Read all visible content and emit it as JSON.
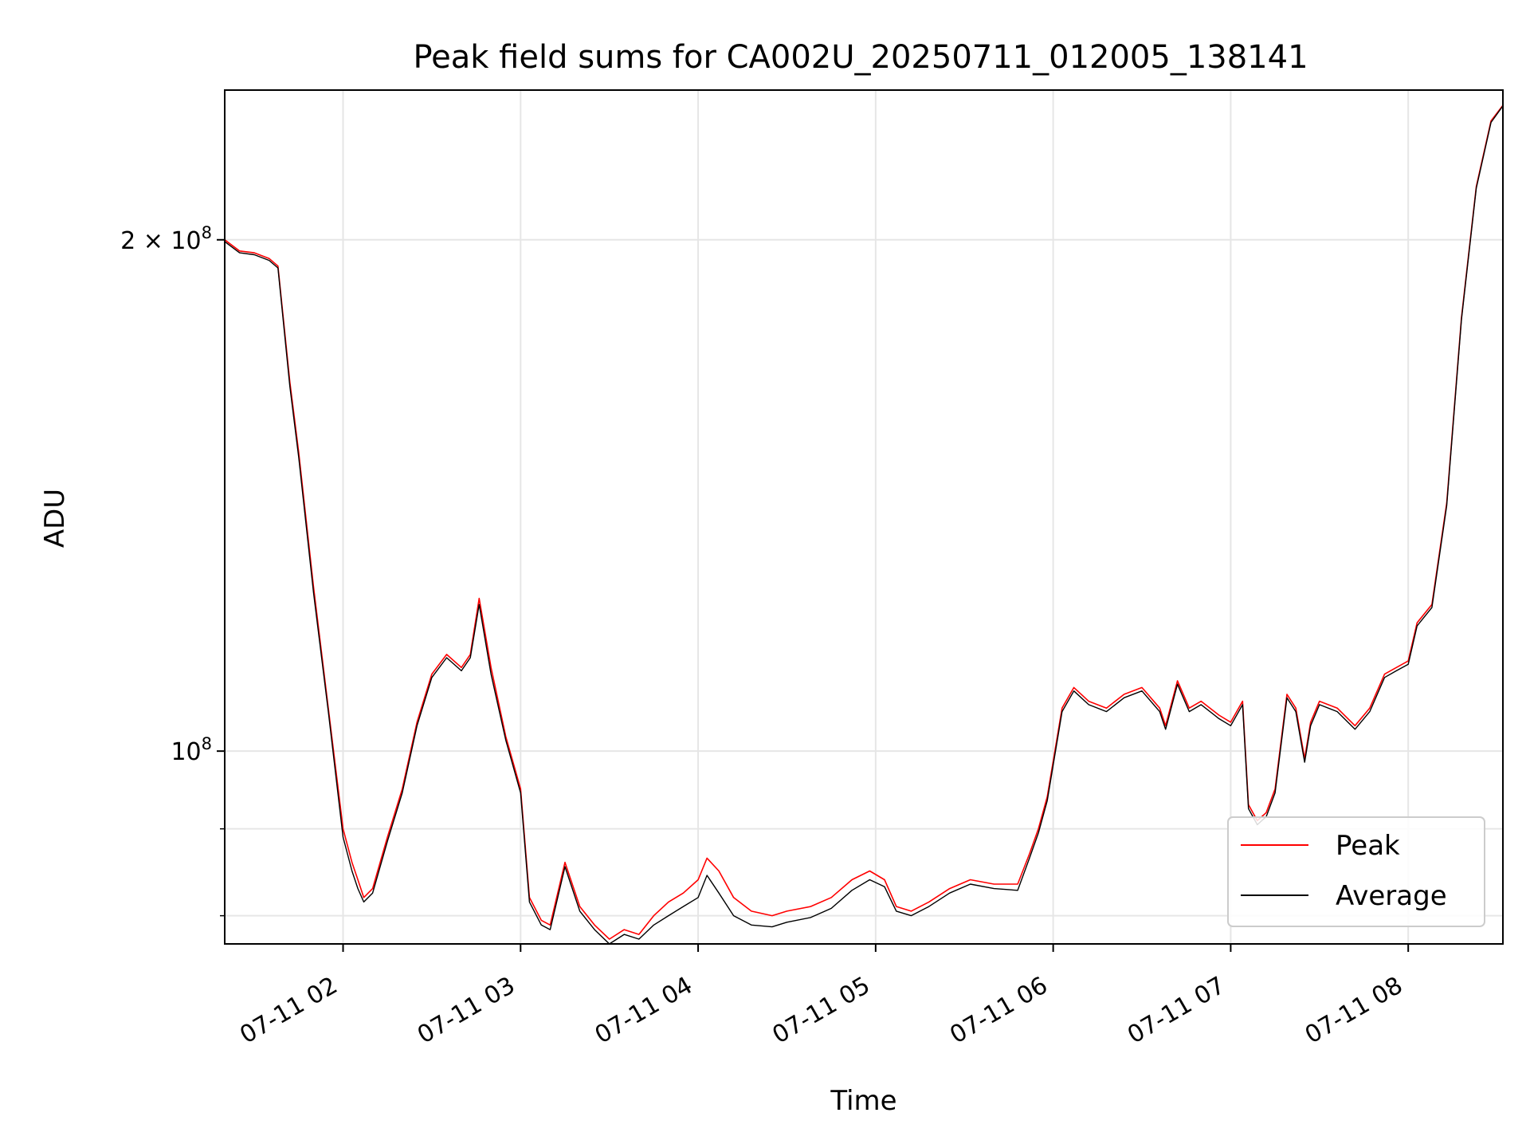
{
  "chart_data": {
    "type": "line",
    "title": "Peak field sums for CA002U_20250711_012005_138141",
    "xlabel": "Time",
    "ylabel": "ADU",
    "yscale": "log",
    "grid": true,
    "legend_position": "lower-right",
    "x_tick_labels": [
      "07-11 02",
      "07-11 03",
      "07-11 04",
      "07-11 05",
      "07-11 06",
      "07-11 07",
      "07-11 08"
    ],
    "y_tick_labels": [
      {
        "mantissa": "2",
        "exponent": "8"
      },
      {
        "mantissa": "",
        "exponent": "8"
      }
    ],
    "xlim": [
      "2025-07-11 01:20",
      "2025-07-11 08:32"
    ],
    "ylim": [
      77000000,
      245000000
    ],
    "colors": {
      "peak": "#ff0000",
      "average": "#000000",
      "grid": "#e6e6e6"
    },
    "series": [
      {
        "name": "Peak",
        "color": "#ff0000",
        "x": [
          "2025-07-11 01:20",
          "2025-07-11 01:25",
          "2025-07-11 01:30",
          "2025-07-11 01:35",
          "2025-07-11 01:38",
          "2025-07-11 01:42",
          "2025-07-11 01:45",
          "2025-07-11 01:50",
          "2025-07-11 01:55",
          "2025-07-11 02:00",
          "2025-07-11 02:03",
          "2025-07-11 02:05",
          "2025-07-11 02:07",
          "2025-07-11 02:10",
          "2025-07-11 02:15",
          "2025-07-11 02:20",
          "2025-07-11 02:25",
          "2025-07-11 02:30",
          "2025-07-11 02:35",
          "2025-07-11 02:40",
          "2025-07-11 02:43",
          "2025-07-11 02:46",
          "2025-07-11 02:50",
          "2025-07-11 02:55",
          "2025-07-11 03:00",
          "2025-07-11 03:03",
          "2025-07-11 03:07",
          "2025-07-11 03:10",
          "2025-07-11 03:15",
          "2025-07-11 03:20",
          "2025-07-11 03:25",
          "2025-07-11 03:30",
          "2025-07-11 03:35",
          "2025-07-11 03:40",
          "2025-07-11 03:45",
          "2025-07-11 03:50",
          "2025-07-11 03:55",
          "2025-07-11 04:00",
          "2025-07-11 04:03",
          "2025-07-11 04:07",
          "2025-07-11 04:12",
          "2025-07-11 04:18",
          "2025-07-11 04:25",
          "2025-07-11 04:30",
          "2025-07-11 04:38",
          "2025-07-11 04:45",
          "2025-07-11 04:52",
          "2025-07-11 04:58",
          "2025-07-11 05:03",
          "2025-07-11 05:07",
          "2025-07-11 05:12",
          "2025-07-11 05:18",
          "2025-07-11 05:25",
          "2025-07-11 05:32",
          "2025-07-11 05:40",
          "2025-07-11 05:48",
          "2025-07-11 05:52",
          "2025-07-11 05:55",
          "2025-07-11 05:58",
          "2025-07-11 06:03",
          "2025-07-11 06:07",
          "2025-07-11 06:12",
          "2025-07-11 06:18",
          "2025-07-11 06:24",
          "2025-07-11 06:30",
          "2025-07-11 06:36",
          "2025-07-11 06:38",
          "2025-07-11 06:42",
          "2025-07-11 06:46",
          "2025-07-11 06:50",
          "2025-07-11 06:56",
          "2025-07-11 07:00",
          "2025-07-11 07:04",
          "2025-07-11 07:06",
          "2025-07-11 07:09",
          "2025-07-11 07:12",
          "2025-07-11 07:15",
          "2025-07-11 07:19",
          "2025-07-11 07:22",
          "2025-07-11 07:25",
          "2025-07-11 07:27",
          "2025-07-11 07:30",
          "2025-07-11 07:36",
          "2025-07-11 07:42",
          "2025-07-11 07:47",
          "2025-07-11 07:52",
          "2025-07-11 07:56",
          "2025-07-11 08:00",
          "2025-07-11 08:03",
          "2025-07-11 08:08",
          "2025-07-11 08:13",
          "2025-07-11 08:18",
          "2025-07-11 08:23",
          "2025-07-11 08:28",
          "2025-07-11 08:32"
        ],
        "values": [
          200000000,
          197000000,
          196500000,
          195000000,
          193000000,
          165000000,
          150000000,
          125000000,
          106000000,
          90000000,
          86000000,
          84000000,
          82000000,
          83000000,
          89000000,
          95000000,
          104000000,
          111000000,
          114000000,
          112000000,
          114000000,
          123000000,
          112000000,
          102000000,
          95000000,
          82000000,
          79500000,
          79000000,
          86000000,
          81000000,
          79000000,
          77500000,
          78500000,
          78000000,
          80000000,
          81500000,
          82500000,
          84000000,
          86500000,
          85000000,
          82000000,
          80500000,
          80000000,
          80500000,
          81000000,
          82000000,
          84000000,
          85000000,
          84000000,
          81000000,
          80500000,
          81500000,
          83000000,
          84000000,
          83500000,
          83500000,
          87000000,
          90000000,
          94000000,
          106000000,
          109000000,
          107000000,
          106000000,
          108000000,
          109000000,
          106000000,
          103500000,
          110000000,
          106000000,
          107000000,
          105000000,
          104000000,
          107000000,
          93000000,
          91000000,
          92000000,
          95000000,
          108000000,
          106000000,
          99000000,
          104000000,
          107000000,
          106000000,
          103500000,
          106000000,
          111000000,
          112000000,
          113000000,
          119000000,
          122000000,
          140000000,
          180000000,
          215000000,
          235000000,
          240000000
        ]
      },
      {
        "name": "Average",
        "color": "#000000",
        "x": [
          "2025-07-11 01:20",
          "2025-07-11 01:25",
          "2025-07-11 01:30",
          "2025-07-11 01:35",
          "2025-07-11 01:38",
          "2025-07-11 01:42",
          "2025-07-11 01:45",
          "2025-07-11 01:50",
          "2025-07-11 01:55",
          "2025-07-11 02:00",
          "2025-07-11 02:03",
          "2025-07-11 02:05",
          "2025-07-11 02:07",
          "2025-07-11 02:10",
          "2025-07-11 02:15",
          "2025-07-11 02:20",
          "2025-07-11 02:25",
          "2025-07-11 02:30",
          "2025-07-11 02:35",
          "2025-07-11 02:40",
          "2025-07-11 02:43",
          "2025-07-11 02:46",
          "2025-07-11 02:50",
          "2025-07-11 02:55",
          "2025-07-11 03:00",
          "2025-07-11 03:03",
          "2025-07-11 03:07",
          "2025-07-11 03:10",
          "2025-07-11 03:15",
          "2025-07-11 03:20",
          "2025-07-11 03:25",
          "2025-07-11 03:30",
          "2025-07-11 03:35",
          "2025-07-11 03:40",
          "2025-07-11 03:45",
          "2025-07-11 03:50",
          "2025-07-11 03:55",
          "2025-07-11 04:00",
          "2025-07-11 04:03",
          "2025-07-11 04:07",
          "2025-07-11 04:12",
          "2025-07-11 04:18",
          "2025-07-11 04:25",
          "2025-07-11 04:30",
          "2025-07-11 04:38",
          "2025-07-11 04:45",
          "2025-07-11 04:52",
          "2025-07-11 04:58",
          "2025-07-11 05:03",
          "2025-07-11 05:07",
          "2025-07-11 05:12",
          "2025-07-11 05:18",
          "2025-07-11 05:25",
          "2025-07-11 05:32",
          "2025-07-11 05:40",
          "2025-07-11 05:48",
          "2025-07-11 05:52",
          "2025-07-11 05:55",
          "2025-07-11 05:58",
          "2025-07-11 06:03",
          "2025-07-11 06:07",
          "2025-07-11 06:12",
          "2025-07-11 06:18",
          "2025-07-11 06:24",
          "2025-07-11 06:30",
          "2025-07-11 06:36",
          "2025-07-11 06:38",
          "2025-07-11 06:42",
          "2025-07-11 06:46",
          "2025-07-11 06:50",
          "2025-07-11 06:56",
          "2025-07-11 07:00",
          "2025-07-11 07:04",
          "2025-07-11 07:06",
          "2025-07-11 07:09",
          "2025-07-11 07:12",
          "2025-07-11 07:15",
          "2025-07-11 07:19",
          "2025-07-11 07:22",
          "2025-07-11 07:25",
          "2025-07-11 07:27",
          "2025-07-11 07:30",
          "2025-07-11 07:36",
          "2025-07-11 07:42",
          "2025-07-11 07:47",
          "2025-07-11 07:52",
          "2025-07-11 07:56",
          "2025-07-11 08:00",
          "2025-07-11 08:03",
          "2025-07-11 08:08",
          "2025-07-11 08:13",
          "2025-07-11 08:18",
          "2025-07-11 08:23",
          "2025-07-11 08:28",
          "2025-07-11 08:32"
        ],
        "values": [
          199500000,
          196500000,
          196000000,
          194500000,
          192500000,
          164000000,
          149000000,
          124000000,
          105500000,
          89000000,
          85000000,
          83000000,
          81500000,
          82500000,
          88500000,
          94500000,
          103500000,
          110500000,
          113500000,
          111500000,
          113500000,
          122000000,
          111000000,
          101500000,
          94500000,
          81500000,
          79000000,
          78500000,
          85500000,
          80500000,
          78500000,
          77000000,
          78000000,
          77500000,
          79000000,
          80000000,
          81000000,
          82000000,
          84500000,
          82500000,
          80000000,
          79000000,
          78800000,
          79300000,
          79800000,
          80800000,
          82800000,
          84000000,
          83200000,
          80500000,
          80000000,
          81000000,
          82500000,
          83500000,
          83000000,
          82800000,
          86500000,
          89500000,
          93500000,
          105500000,
          108500000,
          106500000,
          105500000,
          107500000,
          108500000,
          105500000,
          103000000,
          109500000,
          105500000,
          106500000,
          104500000,
          103500000,
          106500000,
          92500000,
          90500000,
          91500000,
          94500000,
          107500000,
          105500000,
          98500000,
          103500000,
          106500000,
          105500000,
          103000000,
          105500000,
          110500000,
          111500000,
          112500000,
          118500000,
          121500000,
          139500000,
          179500000,
          214500000,
          234500000,
          239800000
        ]
      }
    ]
  }
}
